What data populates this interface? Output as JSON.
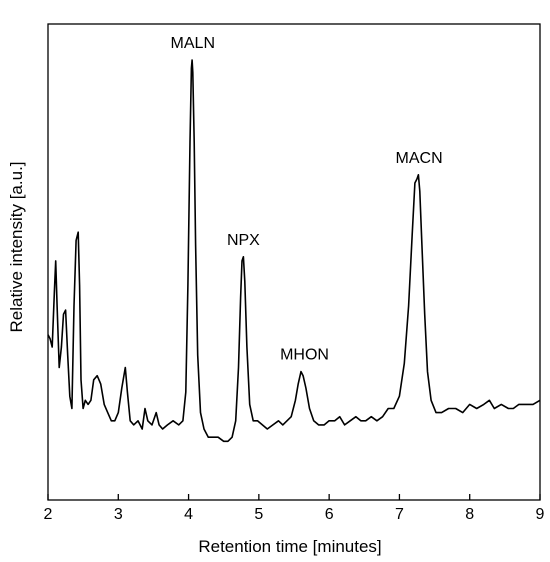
{
  "chart_data": {
    "type": "line",
    "title": "",
    "xlabel": "Retention time [minutes]",
    "ylabel": "Relative intensity [a.u.]",
    "xlim": [
      2,
      9
    ],
    "ylim": [
      0,
      1.0
    ],
    "x_ticks": [
      "2",
      "3",
      "4",
      "5",
      "6",
      "7",
      "8",
      "9"
    ],
    "y_ticks_visible": false,
    "grid": false,
    "legend": "none",
    "line_color": "#000000",
    "series": [
      {
        "x": [
          2.0,
          2.03,
          2.06,
          2.09,
          2.11,
          2.13,
          2.16,
          2.19,
          2.22,
          2.25,
          2.28,
          2.31,
          2.34,
          2.37,
          2.4,
          2.43,
          2.45,
          2.47,
          2.5,
          2.53,
          2.57,
          2.61,
          2.65,
          2.7,
          2.75,
          2.8,
          2.85,
          2.9,
          2.95,
          3.0,
          3.05,
          3.1,
          3.13,
          3.17,
          3.22,
          3.28,
          3.34,
          3.38,
          3.42,
          3.48,
          3.54,
          3.58,
          3.63,
          3.7,
          3.78,
          3.86,
          3.92,
          3.96,
          3.99,
          4.02,
          4.04,
          4.05,
          4.06,
          4.08,
          4.1,
          4.13,
          4.17,
          4.22,
          4.28,
          4.35,
          4.42,
          4.5,
          4.56,
          4.62,
          4.67,
          4.71,
          4.74,
          4.76,
          4.78,
          4.8,
          4.83,
          4.87,
          4.92,
          4.98,
          5.05,
          5.12,
          5.2,
          5.28,
          5.34,
          5.4,
          5.46,
          5.52,
          5.56,
          5.6,
          5.63,
          5.67,
          5.72,
          5.78,
          5.85,
          5.93,
          6.0,
          6.08,
          6.15,
          6.22,
          6.3,
          6.38,
          6.45,
          6.52,
          6.6,
          6.68,
          6.76,
          6.84,
          6.92,
          7.0,
          7.07,
          7.13,
          7.18,
          7.22,
          7.25,
          7.27,
          7.29,
          7.32,
          7.36,
          7.4,
          7.45,
          7.52,
          7.6,
          7.7,
          7.8,
          7.9,
          8.0,
          8.1,
          8.2,
          8.28,
          8.35,
          8.45,
          8.55,
          8.62,
          8.7,
          8.8,
          8.9,
          9.0
        ],
        "y": [
          0.33,
          0.32,
          0.3,
          0.43,
          0.51,
          0.4,
          0.25,
          0.3,
          0.38,
          0.39,
          0.28,
          0.18,
          0.15,
          0.4,
          0.56,
          0.58,
          0.45,
          0.22,
          0.15,
          0.17,
          0.16,
          0.17,
          0.22,
          0.23,
          0.21,
          0.16,
          0.14,
          0.12,
          0.12,
          0.14,
          0.2,
          0.25,
          0.19,
          0.12,
          0.11,
          0.12,
          0.1,
          0.15,
          0.12,
          0.11,
          0.14,
          0.11,
          0.1,
          0.11,
          0.12,
          0.11,
          0.12,
          0.19,
          0.45,
          0.8,
          0.98,
          1.0,
          0.97,
          0.8,
          0.55,
          0.28,
          0.14,
          0.1,
          0.08,
          0.08,
          0.08,
          0.07,
          0.07,
          0.08,
          0.12,
          0.25,
          0.42,
          0.51,
          0.52,
          0.46,
          0.3,
          0.16,
          0.12,
          0.12,
          0.11,
          0.1,
          0.11,
          0.12,
          0.11,
          0.12,
          0.13,
          0.17,
          0.21,
          0.24,
          0.23,
          0.2,
          0.15,
          0.12,
          0.11,
          0.11,
          0.12,
          0.12,
          0.13,
          0.11,
          0.12,
          0.13,
          0.12,
          0.12,
          0.13,
          0.12,
          0.13,
          0.15,
          0.15,
          0.18,
          0.26,
          0.4,
          0.57,
          0.7,
          0.71,
          0.72,
          0.68,
          0.55,
          0.38,
          0.24,
          0.17,
          0.14,
          0.14,
          0.15,
          0.15,
          0.14,
          0.16,
          0.15,
          0.16,
          0.17,
          0.15,
          0.16,
          0.15,
          0.15,
          0.16,
          0.16,
          0.16,
          0.17
        ]
      }
    ],
    "annotations": [
      {
        "text": "MALN",
        "x": 4.06,
        "y": 1.0
      },
      {
        "text": "NPX",
        "x": 4.78,
        "y": 0.52
      },
      {
        "text": "MHON",
        "x": 5.65,
        "y": 0.24
      },
      {
        "text": "MACN",
        "x": 7.28,
        "y": 0.72
      }
    ]
  }
}
